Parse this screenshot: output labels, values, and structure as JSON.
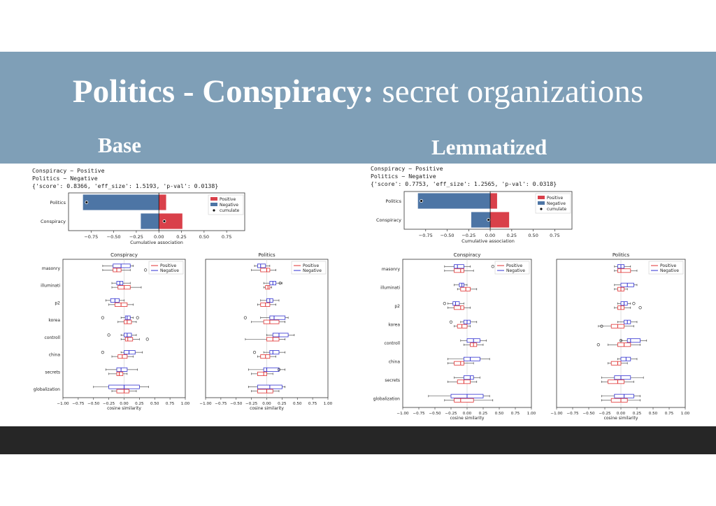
{
  "slide": {
    "title_bold": "Politics - Conspiracy:",
    "title_rest": " secret organizations",
    "left_heading": "Base",
    "right_heading": "Lemmatized"
  },
  "colors": {
    "banner": "#7f9fb7",
    "bottom_bar": "#262626",
    "positive": "#d9404a",
    "negative": "#4d75a5",
    "box_positive": "#e03030",
    "box_negative": "#3030d0"
  },
  "panels": [
    {
      "id": "base",
      "text_lines": [
        "Conspiracy ~ Positive",
        "Politics ~ Negative",
        "{'score': 0.8366, 'eff_size': 1.5193, 'p-val': 0.0138}"
      ],
      "assoc": {
        "categories": [
          "Politics",
          "Conspiracy"
        ],
        "positive": [
          0.08,
          0.26
        ],
        "negative": [
          -0.84,
          -0.2
        ],
        "cumulate": [
          -0.8,
          0.06
        ],
        "xlabel": "Cumulative association",
        "ticks": [
          "−0.75",
          "−0.50",
          "−0.25",
          "0.00",
          "0.25",
          "0.50",
          "0.75"
        ],
        "tick_values": [
          -0.75,
          -0.5,
          -0.25,
          0,
          0.25,
          0.5,
          0.75
        ],
        "legend": [
          "Positive",
          "Negative",
          "cumulate"
        ]
      },
      "box_plots": [
        {
          "title": "Conspiracy",
          "show_ylabels": true,
          "legend": [
            "Positive",
            "Negative"
          ],
          "xlabel": "cosine similarity",
          "categories": [
            "masonry",
            "illuminati",
            "p2",
            "korea",
            "controll",
            "china",
            "secrets",
            "globalization"
          ],
          "positive": [
            [
              -0.35,
              -0.18,
              -0.12,
              -0.05,
              0.1,
              [
                0.35
              ]
            ],
            [
              -0.2,
              -0.1,
              0.0,
              0.1,
              0.28,
              []
            ],
            [
              -0.25,
              -0.15,
              -0.05,
              0.05,
              0.15,
              []
            ],
            [
              -0.1,
              0.0,
              0.05,
              0.12,
              0.2,
              []
            ],
            [
              -0.05,
              0.02,
              0.06,
              0.14,
              0.25,
              [
                0.38
              ]
            ],
            [
              -0.2,
              -0.1,
              -0.03,
              0.05,
              0.15,
              []
            ],
            [
              -0.25,
              -0.12,
              -0.08,
              -0.02,
              0.05,
              []
            ],
            [
              -0.2,
              -0.12,
              0.0,
              0.08,
              0.2,
              []
            ]
          ],
          "negative": [
            [
              -0.35,
              -0.18,
              -0.05,
              0.1,
              0.15,
              []
            ],
            [
              -0.2,
              -0.12,
              -0.07,
              -0.02,
              0.1,
              []
            ],
            [
              -0.3,
              -0.22,
              -0.15,
              -0.08,
              0.0,
              []
            ],
            [
              -0.05,
              0.02,
              0.05,
              0.1,
              0.15,
              [
                -0.35,
                0.22
              ]
            ],
            [
              -0.05,
              0.0,
              0.05,
              0.12,
              0.2,
              [
                -0.25
              ]
            ],
            [
              -0.05,
              0.0,
              0.08,
              0.18,
              0.3,
              [
                -0.35
              ]
            ],
            [
              -0.3,
              -0.12,
              -0.05,
              0.05,
              0.22,
              []
            ],
            [
              -0.5,
              -0.25,
              0.0,
              0.25,
              0.4,
              []
            ]
          ]
        },
        {
          "title": "Politics",
          "show_ylabels": false,
          "legend": [
            "Positive",
            "Negative"
          ],
          "xlabel": "cosine similarity",
          "categories": [
            "masonry",
            "illuminati",
            "p2",
            "korea",
            "controll",
            "china",
            "secrets",
            "globalization"
          ],
          "positive": [
            [
              -0.25,
              -0.1,
              0.0,
              0.05,
              0.15,
              []
            ],
            [
              -0.05,
              -0.02,
              0.02,
              0.05,
              0.08,
              []
            ],
            [
              -0.15,
              -0.1,
              -0.02,
              0.05,
              0.15,
              []
            ],
            [
              -0.25,
              -0.05,
              0.05,
              0.2,
              0.3,
              []
            ],
            [
              -0.35,
              0.0,
              0.1,
              0.2,
              0.3,
              []
            ],
            [
              -0.15,
              -0.1,
              -0.02,
              0.05,
              0.15,
              []
            ],
            [
              -0.25,
              -0.15,
              -0.05,
              0.0,
              0.1,
              []
            ],
            [
              -0.25,
              -0.15,
              0.0,
              0.1,
              0.2,
              []
            ]
          ],
          "negative": [
            [
              -0.2,
              -0.15,
              -0.1,
              -0.02,
              0.05,
              []
            ],
            [
              -0.05,
              0.05,
              0.1,
              0.15,
              0.25,
              [
                0.22
              ]
            ],
            [
              -0.1,
              0.0,
              0.05,
              0.1,
              0.2,
              []
            ],
            [
              -0.1,
              0.05,
              0.12,
              0.3,
              0.35,
              [
                -0.35
              ]
            ],
            [
              0.0,
              0.1,
              0.2,
              0.35,
              0.45,
              []
            ],
            [
              -0.05,
              0.05,
              0.1,
              0.2,
              0.3,
              [
                -0.2
              ]
            ],
            [
              -0.3,
              -0.05,
              0.0,
              0.2,
              0.3,
              [
                0.2
              ]
            ],
            [
              -0.3,
              -0.15,
              0.05,
              0.25,
              0.3,
              []
            ]
          ]
        }
      ]
    },
    {
      "id": "lemmatized",
      "text_lines": [
        "Conspiracy ~ Positive",
        "Politics ~ Negative",
        "{'score': 0.7753, 'eff_size': 1.2565, 'p-val': 0.0318}"
      ],
      "assoc": {
        "categories": [
          "Politics",
          "Conspiracy"
        ],
        "positive": [
          0.08,
          0.22
        ],
        "negative": [
          -0.84,
          -0.22
        ],
        "cumulate": [
          -0.8,
          -0.02
        ],
        "xlabel": "Cumulative association",
        "ticks": [
          "−0.75",
          "−0.50",
          "−0.25",
          "0.00",
          "0.25",
          "0.50",
          "0.75"
        ],
        "tick_values": [
          -0.75,
          -0.5,
          -0.25,
          0,
          0.25,
          0.5,
          0.75
        ],
        "legend": [
          "Positive",
          "Negative",
          "cumulate"
        ]
      },
      "box_plots": [
        {
          "title": "Conspiracy",
          "show_ylabels": true,
          "legend": [
            "Positive",
            "Negative"
          ],
          "xlabel": "cosine similarity",
          "categories": [
            "masonry",
            "illuminati",
            "p2",
            "korea",
            "controll",
            "china",
            "secrets",
            "globalization"
          ],
          "positive": [
            [
              -0.35,
              -0.2,
              -0.1,
              -0.05,
              0.1,
              []
            ],
            [
              -0.15,
              -0.1,
              -0.02,
              0.05,
              0.15,
              []
            ],
            [
              -0.3,
              -0.2,
              -0.1,
              -0.05,
              0.05,
              []
            ],
            [
              -0.2,
              -0.15,
              -0.08,
              0.0,
              0.05,
              []
            ],
            [
              -0.05,
              0.05,
              0.1,
              0.15,
              0.25,
              []
            ],
            [
              -0.3,
              -0.2,
              -0.1,
              -0.05,
              0.1,
              []
            ],
            [
              -0.3,
              -0.15,
              -0.05,
              0.05,
              0.15,
              []
            ],
            [
              -0.35,
              -0.2,
              -0.1,
              0.1,
              0.4,
              []
            ]
          ],
          "negative": [
            [
              -0.35,
              -0.2,
              -0.15,
              -0.05,
              0.05,
              [
                0.4
              ]
            ],
            [
              -0.2,
              -0.12,
              -0.08,
              -0.05,
              0.0,
              []
            ],
            [
              -0.3,
              -0.22,
              -0.18,
              -0.12,
              -0.05,
              [
                -0.35
              ]
            ],
            [
              -0.1,
              -0.05,
              0.0,
              0.05,
              0.15,
              [
                -0.25
              ]
            ],
            [
              -0.1,
              0.0,
              0.1,
              0.2,
              0.3,
              []
            ],
            [
              -0.3,
              -0.05,
              0.05,
              0.2,
              0.35,
              []
            ],
            [
              -0.2,
              -0.05,
              0.05,
              0.1,
              0.2,
              []
            ],
            [
              -0.6,
              -0.25,
              0.0,
              0.25,
              0.35,
              []
            ]
          ]
        },
        {
          "title": "Politics",
          "show_ylabels": false,
          "legend": [
            "Positive",
            "Negative"
          ],
          "xlabel": "cosine similarity",
          "categories": [
            "masonry",
            "illuminati",
            "p2",
            "korea",
            "controll",
            "china",
            "secrets",
            "globalization"
          ],
          "positive": [
            [
              -0.1,
              -0.05,
              0.0,
              0.15,
              0.25,
              []
            ],
            [
              -0.1,
              -0.05,
              0.0,
              0.05,
              0.1,
              []
            ],
            [
              -0.1,
              -0.05,
              0.0,
              0.05,
              0.15,
              [
                0.3
              ]
            ],
            [
              -0.35,
              -0.15,
              -0.05,
              0.05,
              0.2,
              [
                -0.3
              ]
            ],
            [
              -0.2,
              -0.05,
              0.05,
              0.15,
              0.3,
              [
                -0.35
              ]
            ],
            [
              -0.2,
              -0.15,
              -0.05,
              0.0,
              0.1,
              []
            ],
            [
              -0.3,
              -0.2,
              -0.05,
              0.05,
              0.2,
              []
            ],
            [
              -0.3,
              -0.15,
              0.0,
              0.1,
              0.3,
              []
            ]
          ],
          "negative": [
            [
              -0.1,
              -0.05,
              0.0,
              0.05,
              0.15,
              []
            ],
            [
              -0.1,
              0.0,
              0.1,
              0.2,
              0.25,
              []
            ],
            [
              -0.05,
              0.0,
              0.05,
              0.1,
              0.15,
              [
                0.2
              ]
            ],
            [
              -0.05,
              0.05,
              0.1,
              0.15,
              0.25,
              []
            ],
            [
              0.0,
              0.1,
              0.15,
              0.3,
              0.4,
              [
                0.0
              ]
            ],
            [
              -0.05,
              0.0,
              0.08,
              0.15,
              0.25,
              []
            ],
            [
              -0.3,
              -0.1,
              0.0,
              0.15,
              0.35,
              []
            ],
            [
              -0.3,
              -0.1,
              0.05,
              0.2,
              0.3,
              []
            ]
          ]
        }
      ]
    }
  ]
}
